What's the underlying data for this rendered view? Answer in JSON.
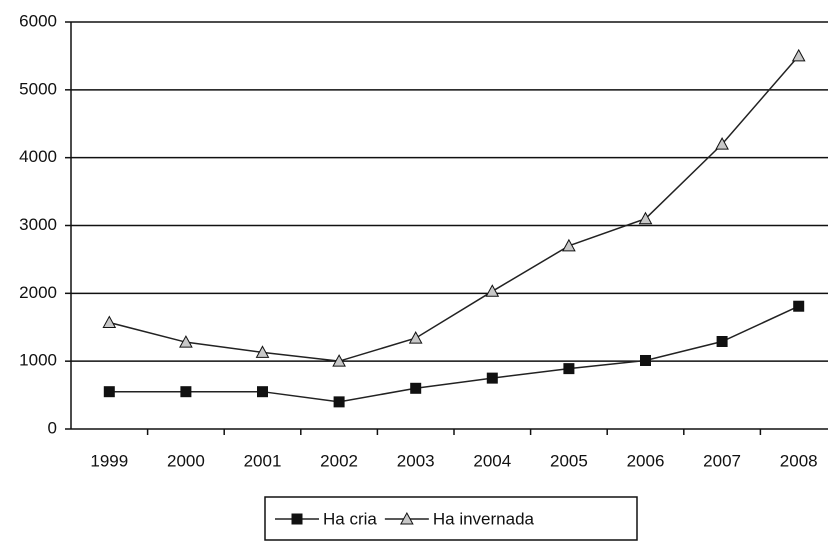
{
  "chart_data": {
    "type": "line",
    "categories": [
      "1999",
      "2000",
      "2001",
      "2002",
      "2003",
      "2004",
      "2005",
      "2006",
      "2007",
      "2008"
    ],
    "series": [
      {
        "name": "Ha cria",
        "color": "#111111",
        "marker": "square",
        "values": [
          550,
          550,
          550,
          400,
          600,
          750,
          890,
          1010,
          1290,
          1810
        ]
      },
      {
        "name": "Ha invernada",
        "color": "#c8c8c8",
        "marker": "triangle",
        "values": [
          1570,
          1280,
          1130,
          1000,
          1340,
          2030,
          2700,
          3100,
          4200,
          5500
        ]
      }
    ],
    "ylim": [
      0,
      6000
    ],
    "yticks": [
      0,
      1000,
      2000,
      3000,
      4000,
      5000,
      6000
    ],
    "grid": true,
    "legend": "bottom"
  }
}
